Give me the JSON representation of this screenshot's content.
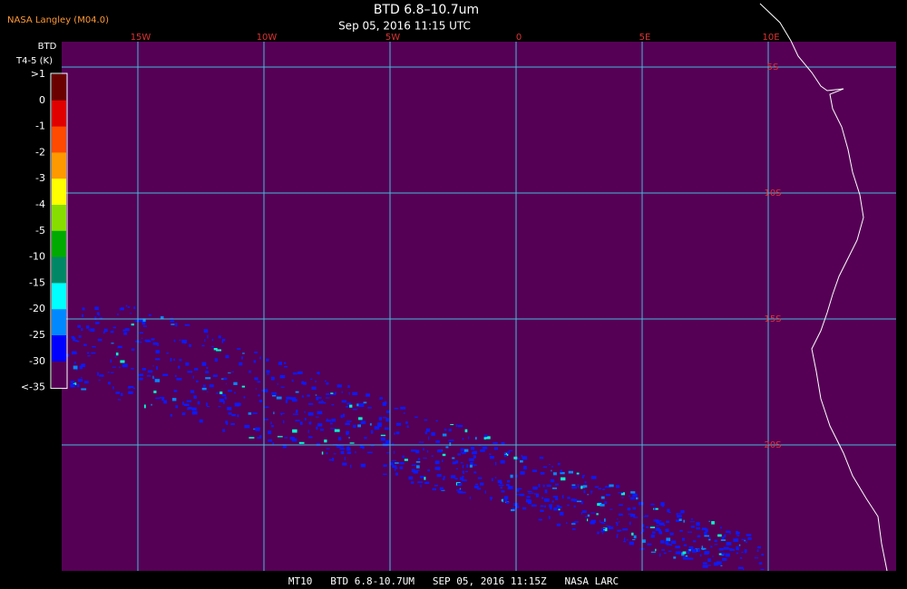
{
  "header": {
    "source": "NASA Langley (M04.0)",
    "title": "BTD 6.8–10.7um",
    "subtitle": "Sep 05, 2016 11:15 UTC"
  },
  "colorbar": {
    "title": "BTD",
    "unit": "T4-5 (K)",
    "labels": [
      ">1",
      "0",
      "-1",
      "-2",
      "-3",
      "-4",
      "-5",
      "-10",
      "-15",
      "-20",
      "-25",
      "-30",
      "<-35"
    ],
    "colors": [
      "#6a0000",
      "#e00000",
      "#ff4a00",
      "#ff9900",
      "#ffff00",
      "#88dd00",
      "#00aa00",
      "#008866",
      "#00ffff",
      "#0088ff",
      "#0000ff",
      "#550055"
    ]
  },
  "map": {
    "background": "#550055",
    "grid_color": "#44bbdd",
    "lon_labels": [
      "15W",
      "10W",
      "5W",
      "0",
      "5E",
      "10E"
    ],
    "lat_labels": [
      "5S",
      "10S",
      "15S",
      "20S"
    ]
  },
  "footer": {
    "text": "MT10   BTD 6.8-10.7UM   SEP 05, 2016 11:15Z   NASA LARC"
  }
}
